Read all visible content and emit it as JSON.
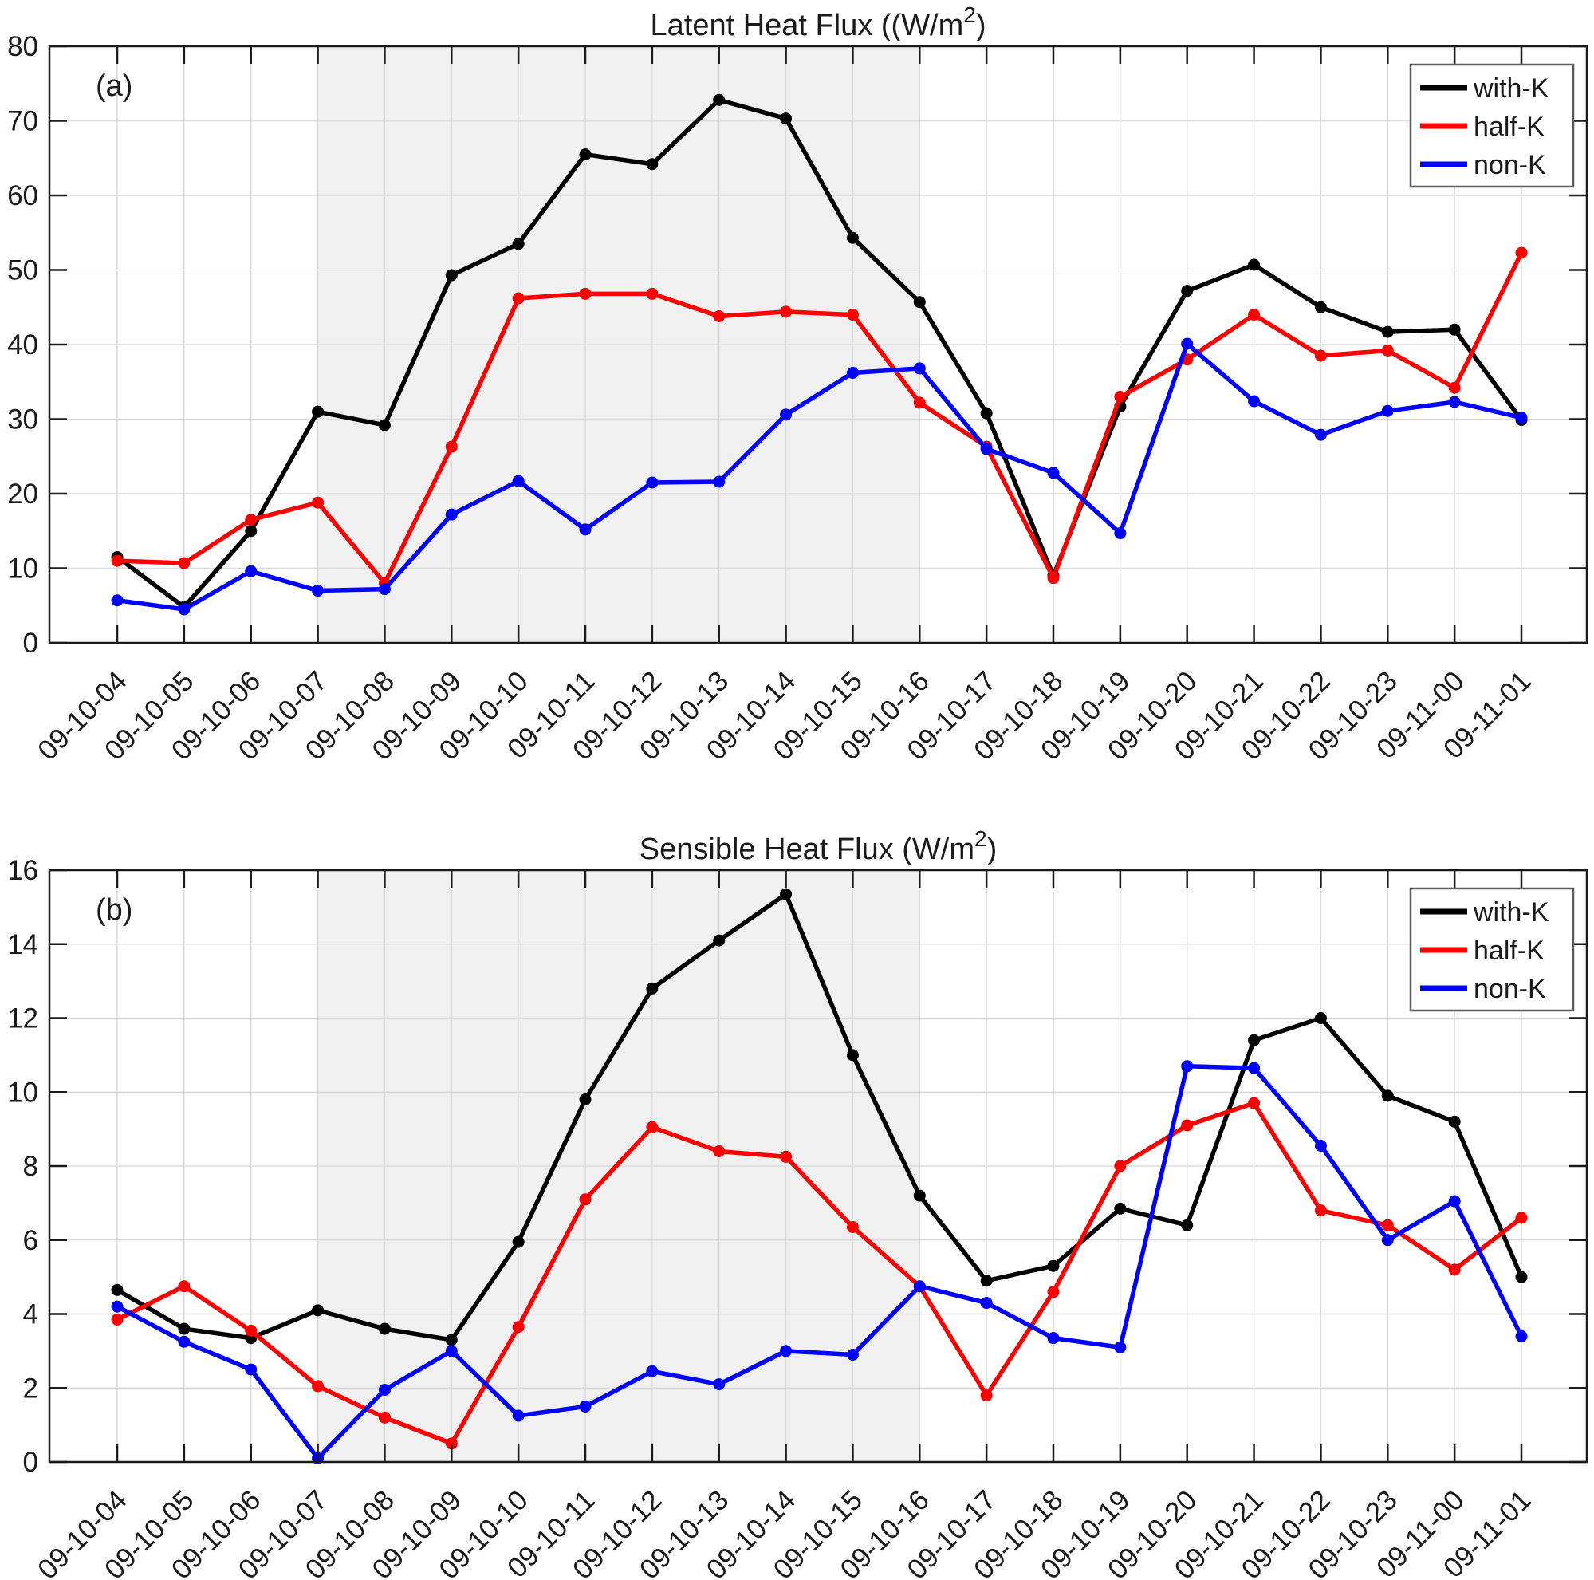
{
  "figure": {
    "background": "#ffffff",
    "grid_color": "#dcdcdc",
    "axis_color": "#1a1a1a",
    "shade_color": "#f0f0f0"
  },
  "legend": {
    "items": [
      {
        "label": "with-K",
        "color": "#000000"
      },
      {
        "label": "half-K",
        "color": "#ff0000"
      },
      {
        "label": "non-K",
        "color": "#0000ff"
      }
    ]
  },
  "x_dates": [
    "09-10-04",
    "09-10-05",
    "09-10-06",
    "09-10-07",
    "09-10-08",
    "09-10-09",
    "09-10-10",
    "09-10-11",
    "09-10-12",
    "09-10-13",
    "09-10-14",
    "09-10-15",
    "09-10-16",
    "09-10-17",
    "09-10-18",
    "09-10-19",
    "09-10-20",
    "09-10-21",
    "09-10-22",
    "09-10-23",
    "09-11-00",
    "09-11-01"
  ],
  "chart_data": [
    {
      "type": "line",
      "panel_label": "(a)",
      "title_main": "Latent Heat Flux ((W/m",
      "title_sup": "2",
      "title_close": ")",
      "categories": [
        "09-10-04",
        "09-10-05",
        "09-10-06",
        "09-10-07",
        "09-10-08",
        "09-10-09",
        "09-10-10",
        "09-10-11",
        "09-10-12",
        "09-10-13",
        "09-10-14",
        "09-10-15",
        "09-10-16",
        "09-10-17",
        "09-10-18",
        "09-10-19",
        "09-10-20",
        "09-10-21",
        "09-10-22",
        "09-10-23",
        "09-11-00",
        "09-11-01"
      ],
      "ylim": [
        0,
        80
      ],
      "ytick_step": 10,
      "ytick_labels": [
        "0",
        "10",
        "20",
        "30",
        "40",
        "50",
        "60",
        "70",
        "80"
      ],
      "grid": true,
      "legend_position": "top-right",
      "shaded_x_range": [
        "09-10-07",
        "09-10-16"
      ],
      "series": [
        {
          "name": "with-K",
          "color": "#000000",
          "values": [
            11.5,
            4.8,
            15.0,
            31.0,
            29.2,
            49.3,
            53.5,
            65.5,
            64.2,
            72.8,
            70.3,
            54.3,
            45.7,
            30.8,
            9.0,
            31.7,
            47.2,
            50.7,
            45.0,
            41.7,
            42.0,
            29.9
          ]
        },
        {
          "name": "half-K",
          "color": "#ff0000",
          "values": [
            11.0,
            10.7,
            16.5,
            18.8,
            8.0,
            26.3,
            46.2,
            46.8,
            46.8,
            43.8,
            44.4,
            44.0,
            32.2,
            26.3,
            8.7,
            33.0,
            38.0,
            44.0,
            38.5,
            39.2,
            34.2,
            52.3
          ]
        },
        {
          "name": "non-K",
          "color": "#0000ff",
          "values": [
            5.7,
            4.5,
            9.6,
            7.0,
            7.2,
            17.2,
            21.7,
            15.2,
            21.5,
            21.6,
            30.6,
            36.2,
            36.8,
            26.0,
            22.8,
            14.7,
            40.1,
            32.4,
            27.9,
            31.1,
            32.3,
            30.2
          ]
        }
      ]
    },
    {
      "type": "line",
      "panel_label": "(b)",
      "title_main": "Sensible Heat Flux (W/m",
      "title_sup": "2",
      "title_close": ")",
      "categories": [
        "09-10-04",
        "09-10-05",
        "09-10-06",
        "09-10-07",
        "09-10-08",
        "09-10-09",
        "09-10-10",
        "09-10-11",
        "09-10-12",
        "09-10-13",
        "09-10-14",
        "09-10-15",
        "09-10-16",
        "09-10-17",
        "09-10-18",
        "09-10-19",
        "09-10-20",
        "09-10-21",
        "09-10-22",
        "09-10-23",
        "09-11-00",
        "09-11-01"
      ],
      "ylim": [
        0,
        16
      ],
      "ytick_step": 2,
      "ytick_labels": [
        "0",
        "2",
        "4",
        "6",
        "8",
        "10",
        "12",
        "14",
        "16"
      ],
      "grid": true,
      "legend_position": "top-right",
      "shaded_x_range": [
        "09-10-07",
        "09-10-16"
      ],
      "series": [
        {
          "name": "with-K",
          "color": "#000000",
          "values": [
            4.65,
            3.6,
            3.35,
            4.1,
            3.6,
            3.3,
            5.95,
            9.8,
            12.8,
            14.1,
            15.35,
            11.0,
            7.2,
            4.9,
            5.3,
            6.85,
            6.4,
            11.4,
            12.0,
            9.9,
            9.2,
            5.0
          ]
        },
        {
          "name": "half-K",
          "color": "#ff0000",
          "values": [
            3.85,
            4.75,
            3.55,
            2.05,
            1.2,
            0.5,
            3.65,
            7.1,
            9.05,
            8.4,
            8.25,
            6.35,
            4.75,
            1.8,
            4.6,
            8.0,
            9.1,
            9.7,
            6.8,
            6.4,
            5.2,
            6.6
          ]
        },
        {
          "name": "non-K",
          "color": "#0000ff",
          "values": [
            4.2,
            3.25,
            2.5,
            0.1,
            1.95,
            3.0,
            1.25,
            1.5,
            2.45,
            2.1,
            3.0,
            2.9,
            4.75,
            4.3,
            3.35,
            3.1,
            10.7,
            10.65,
            8.55,
            6.0,
            7.05,
            3.4
          ]
        }
      ]
    }
  ]
}
